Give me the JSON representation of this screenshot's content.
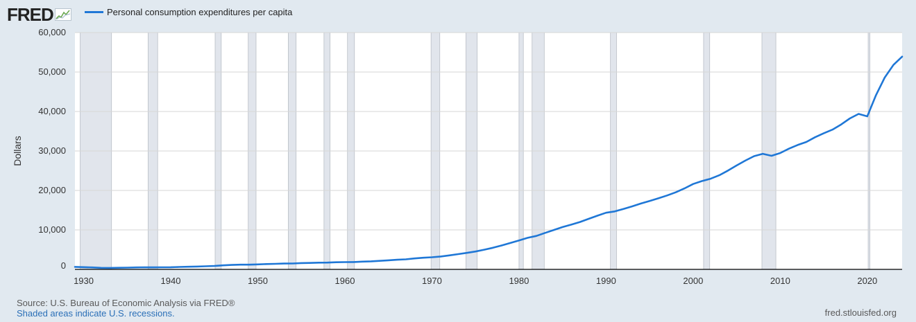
{
  "header": {
    "logo_text": "FRED",
    "logo_icon": "fred-chart-mark-icon"
  },
  "colors": {
    "background": "#e1e9f0",
    "plot_background": "#ffffff",
    "series": "#1f77d6",
    "recession": "#e1e5ec",
    "grid": "#d6d6d6",
    "link": "#2a6fb7"
  },
  "footer": {
    "source": "Source: U.S. Bureau of Economic Analysis via FRED®",
    "shaded_note": "Shaded areas indicate U.S. recessions.",
    "site": "fred.stlouisfed.org"
  },
  "chart_data": {
    "type": "line",
    "title": "",
    "xlabel": "",
    "ylabel": "Dollars",
    "xlim": [
      1929,
      2024
    ],
    "ylim": [
      0,
      60000
    ],
    "grid": true,
    "legend_position": "top-left",
    "x_ticks": [
      1930,
      1940,
      1950,
      1960,
      1970,
      1980,
      1990,
      2000,
      2010,
      2020
    ],
    "y_ticks": [
      0,
      10000,
      20000,
      30000,
      40000,
      50000,
      60000
    ],
    "y_tick_labels": [
      "0",
      "10,000",
      "20,000",
      "30,000",
      "40,000",
      "50,000",
      "60,000"
    ],
    "recessions": [
      [
        1929.6,
        1933.2
      ],
      [
        1937.4,
        1938.5
      ],
      [
        1945.1,
        1945.8
      ],
      [
        1948.9,
        1949.8
      ],
      [
        1953.5,
        1954.4
      ],
      [
        1957.6,
        1958.3
      ],
      [
        1960.3,
        1961.1
      ],
      [
        1969.9,
        1970.9
      ],
      [
        1973.9,
        1975.2
      ],
      [
        1980.0,
        1980.5
      ],
      [
        1981.5,
        1982.9
      ],
      [
        1990.5,
        1991.2
      ],
      [
        2001.2,
        2001.9
      ],
      [
        2007.9,
        2009.5
      ],
      [
        2020.1,
        2020.3
      ]
    ],
    "series": [
      {
        "name": "Personal consumption expenditures per capita",
        "x": [
          1929,
          1930,
          1931,
          1932,
          1933,
          1934,
          1935,
          1936,
          1937,
          1938,
          1939,
          1940,
          1941,
          1942,
          1943,
          1944,
          1945,
          1946,
          1947,
          1948,
          1949,
          1950,
          1951,
          1952,
          1953,
          1954,
          1955,
          1956,
          1957,
          1958,
          1959,
          1960,
          1961,
          1962,
          1963,
          1964,
          1965,
          1966,
          1967,
          1968,
          1969,
          1970,
          1971,
          1972,
          1973,
          1974,
          1975,
          1976,
          1977,
          1978,
          1979,
          1980,
          1981,
          1982,
          1983,
          1984,
          1985,
          1986,
          1987,
          1988,
          1989,
          1990,
          1991,
          1992,
          1993,
          1994,
          1995,
          1996,
          1997,
          1998,
          1999,
          2000,
          2001,
          2002,
          2003,
          2004,
          2005,
          2006,
          2007,
          2008,
          2009,
          2010,
          2011,
          2012,
          2013,
          2014,
          2015,
          2016,
          2017,
          2018,
          2019,
          2020,
          2021,
          2022,
          2023,
          2024
        ],
        "values": [
          633,
          565,
          494,
          390,
          367,
          406,
          443,
          490,
          522,
          502,
          521,
          548,
          611,
          662,
          722,
          781,
          857,
          1016,
          1124,
          1196,
          1187,
          1262,
          1353,
          1409,
          1475,
          1497,
          1590,
          1639,
          1703,
          1714,
          1804,
          1847,
          1867,
          1961,
          2039,
          2162,
          2295,
          2440,
          2551,
          2766,
          2948,
          3074,
          3270,
          3539,
          3866,
          4172,
          4529,
          4987,
          5480,
          6060,
          6677,
          7325,
          8003,
          8474,
          9248,
          9983,
          10719,
          11334,
          11993,
          12813,
          13593,
          14357,
          14678,
          15317,
          15964,
          16678,
          17331,
          18008,
          18723,
          19520,
          20508,
          21632,
          22361,
          22972,
          23847,
          25033,
          26326,
          27569,
          28692,
          29282,
          28774,
          29472,
          30582,
          31507,
          32284,
          33474,
          34500,
          35396,
          36714,
          38252,
          39393,
          38767,
          44154,
          48600,
          51800,
          53900
        ]
      }
    ]
  }
}
